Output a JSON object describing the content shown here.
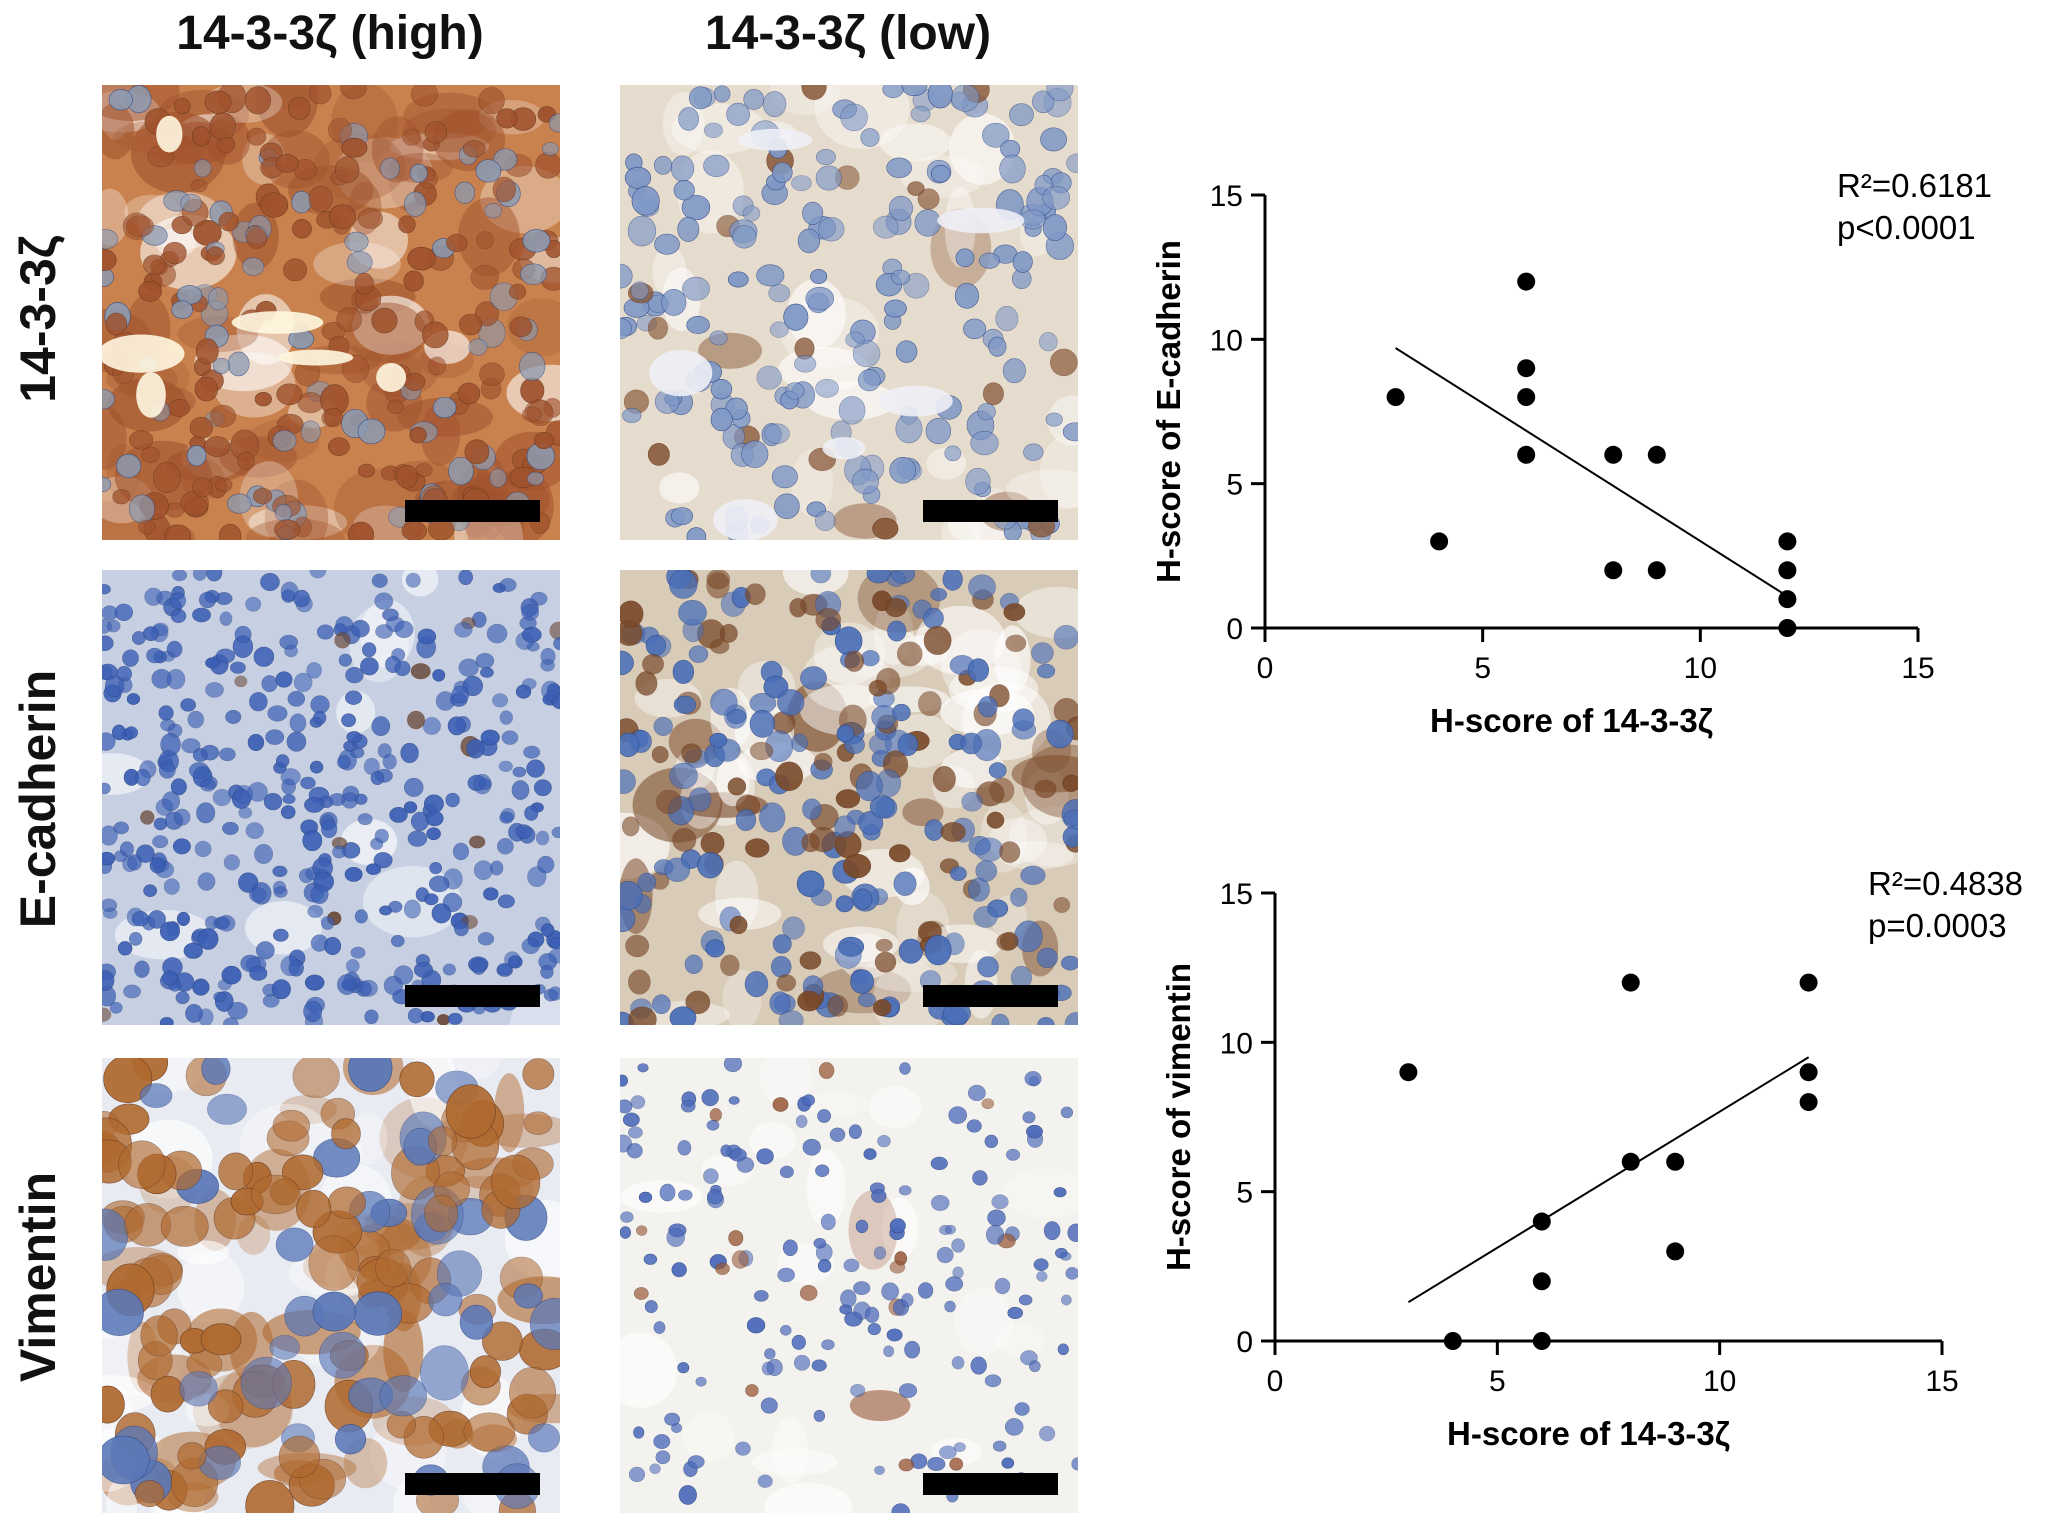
{
  "columns": [
    "14-3-3ζ (high)",
    "14-3-3ζ (low)"
  ],
  "rows": [
    "14-3-3ζ",
    "E-cadherin",
    "Vimentin"
  ],
  "panels": [
    {
      "row": 0,
      "col": 0,
      "stain": "brown-heavy",
      "base": "#c9824e",
      "cell": "#8c9ab0",
      "brown": "#a0522d"
    },
    {
      "row": 0,
      "col": 1,
      "stain": "blue-light",
      "base": "#e6dccd",
      "cell": "#7f98c6",
      "brown": "#8a5a3a"
    },
    {
      "row": 1,
      "col": 0,
      "stain": "blue-heavy",
      "base": "#c7d0e3",
      "cell": "#3b5fb5",
      "brown": "#6a4a3a"
    },
    {
      "row": 1,
      "col": 1,
      "stain": "mixed",
      "base": "#d8cbb8",
      "cell": "#4a6fb8",
      "brown": "#7a4a2a"
    },
    {
      "row": 2,
      "col": 0,
      "stain": "brown-cells",
      "base": "#e9ebf2",
      "cell": "#5a78b8",
      "brown": "#b06a30"
    },
    {
      "row": 2,
      "col": 1,
      "stain": "blue-sparse",
      "base": "#f4f2ee",
      "cell": "#4d6bbb",
      "brown": "#9a5a3a"
    }
  ],
  "chart_data": [
    {
      "type": "scatter",
      "xlabel": "H-score of 14-3-3ζ",
      "ylabel": "H-score of E-cadherin",
      "xlim": [
        0,
        15
      ],
      "ylim": [
        0,
        15
      ],
      "xticks": [
        0,
        5,
        10,
        15
      ],
      "yticks": [
        0,
        5,
        10,
        15
      ],
      "points": [
        [
          3,
          8
        ],
        [
          4,
          3
        ],
        [
          6,
          12
        ],
        [
          6,
          9
        ],
        [
          6,
          8
        ],
        [
          6,
          6
        ],
        [
          8,
          6
        ],
        [
          8,
          2
        ],
        [
          9,
          6
        ],
        [
          9,
          2
        ],
        [
          12,
          3
        ],
        [
          12,
          2
        ],
        [
          12,
          1
        ],
        [
          12,
          0
        ]
      ],
      "fit_line": [
        [
          3,
          9.7
        ],
        [
          12,
          1.1
        ]
      ],
      "annotation": [
        "R²=0.6181",
        "p<0.0001"
      ]
    },
    {
      "type": "scatter",
      "xlabel": "H-score of 14-3-3ζ",
      "ylabel": "H-score of vimentin",
      "xlim": [
        0,
        15
      ],
      "ylim": [
        0,
        15
      ],
      "xticks": [
        0,
        5,
        10,
        15
      ],
      "yticks": [
        0,
        5,
        10,
        15
      ],
      "points": [
        [
          3,
          9
        ],
        [
          4,
          0
        ],
        [
          6,
          4
        ],
        [
          6,
          2
        ],
        [
          6,
          0
        ],
        [
          8,
          12
        ],
        [
          8,
          6
        ],
        [
          9,
          6
        ],
        [
          9,
          3
        ],
        [
          12,
          12
        ],
        [
          12,
          9
        ],
        [
          12,
          8
        ]
      ],
      "fit_line": [
        [
          3,
          1.3
        ],
        [
          12,
          9.5
        ]
      ],
      "annotation": [
        "R²=0.4838",
        "p=0.0003"
      ]
    }
  ]
}
